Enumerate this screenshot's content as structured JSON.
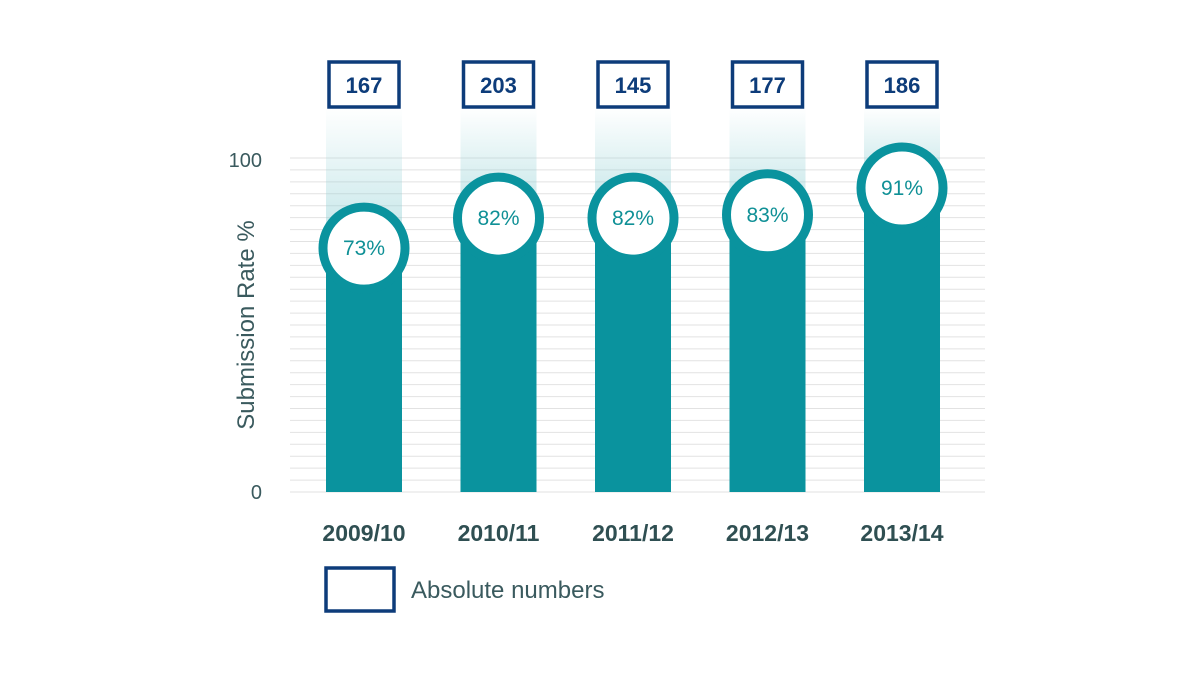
{
  "chart_data": {
    "type": "bar",
    "categories": [
      "2009/10",
      "2010/11",
      "2011/12",
      "2012/13",
      "2013/14"
    ],
    "values": [
      73,
      82,
      82,
      83,
      91
    ],
    "value_labels": [
      "73%",
      "82%",
      "82%",
      "83%",
      "91%"
    ],
    "absolute_numbers": [
      "167",
      "203",
      "145",
      "177",
      "186"
    ],
    "ylabel": "Submission Rate %",
    "ylim": [
      0,
      100
    ],
    "yticks": [
      "0",
      "100"
    ],
    "legend": [
      {
        "label": "Absolute numbers"
      }
    ],
    "legend_position": "bottom",
    "grid": true
  },
  "colors": {
    "bar": "#0a939e",
    "circle_border": "#0a939e",
    "count_box": "#0d3c7a",
    "grid": "#e2e2e2",
    "text": "#3a5a5e"
  }
}
